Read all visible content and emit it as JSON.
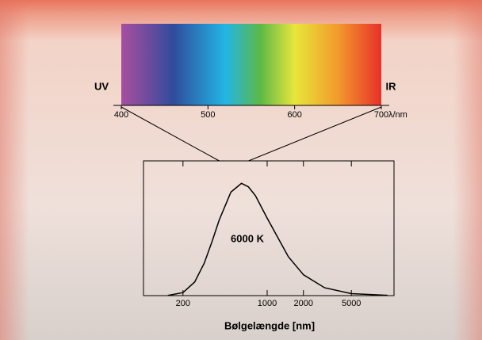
{
  "chart_data": [
    {
      "type": "spectrum",
      "xlim": [
        400,
        700
      ],
      "xticks": [
        400,
        500,
        600,
        700
      ],
      "x_label": "λ/nm",
      "left_label": "UV",
      "right_label": "IR",
      "stops": [
        {
          "value": 400,
          "color": "#a64f9f"
        },
        {
          "value": 430,
          "color": "#6f4c9e"
        },
        {
          "value": 460,
          "color": "#2f4c9b"
        },
        {
          "value": 520,
          "color": "#22b6e6"
        },
        {
          "value": 560,
          "color": "#5cb847"
        },
        {
          "value": 600,
          "color": "#e8e63a"
        },
        {
          "value": 650,
          "color": "#f29a2c"
        },
        {
          "value": 700,
          "color": "#e8302a"
        }
      ]
    },
    {
      "type": "line",
      "log_x": true,
      "color": "#000000",
      "annotation": "6000 K",
      "x_label": "Bølgelængde [nm]",
      "x": [
        150,
        200,
        250,
        300,
        350,
        400,
        500,
        612,
        700,
        800,
        1000,
        1500,
        2000,
        3000,
        5000,
        10000
      ],
      "values": [
        0.002,
        0.027,
        0.121,
        0.288,
        0.487,
        0.674,
        0.922,
        1,
        0.968,
        0.889,
        0.69,
        0.346,
        0.186,
        0.07,
        0.018,
        0.003
      ],
      "xlim": [
        94,
        11300
      ],
      "ylim": [
        0,
        1.2
      ],
      "xticks": [
        200,
        1000,
        2000,
        5000
      ]
    }
  ]
}
